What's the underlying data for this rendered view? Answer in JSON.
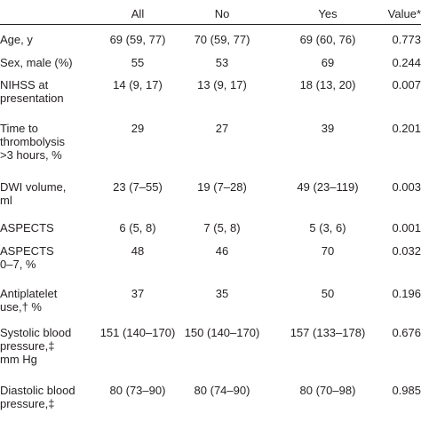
{
  "header": {
    "all": "All",
    "no": "No",
    "yes": "Yes",
    "value": "Value*"
  },
  "rows": [
    {
      "label": [
        "Age, y"
      ],
      "all": "69 (59, 77)",
      "no": "70 (59, 77)",
      "yes": "69 (60, 76)",
      "value": "0.773"
    },
    {
      "label": [
        "Sex, male (%)"
      ],
      "all": "55",
      "no": "53",
      "yes": "69",
      "value": "0.244"
    },
    {
      "label": [
        "NIHSS at",
        "presentation"
      ],
      "all": "14 (9, 17)",
      "no": "13 (9, 17)",
      "yes": "18 (13, 20)",
      "value": "0.007"
    },
    {
      "label": [
        "Time to",
        "thrombolysis",
        ">3 hours, %"
      ],
      "all": "29",
      "no": "27",
      "yes": "39",
      "value": "0.201"
    },
    {
      "label": [
        "DWI volume,",
        "ml"
      ],
      "all": "23 (7–55)",
      "no": "19 (7–28)",
      "yes": "49 (23–119)",
      "value": "0.003"
    },
    {
      "label": [
        "ASPECTS"
      ],
      "all": "6 (5, 8)",
      "no": "7 (5, 8)",
      "yes": "5 (3, 6)",
      "value": "0.001"
    },
    {
      "label": [
        "ASPECTS",
        "0–7, %"
      ],
      "all": "48",
      "no": "46",
      "yes": "70",
      "value": "0.032"
    },
    {
      "label": [
        "Antiplatelet",
        "use,† %"
      ],
      "all": "37",
      "no": "35",
      "yes": "50",
      "value": "0.196"
    },
    {
      "label": [
        "Systolic blood",
        "pressure,‡",
        "mm Hg"
      ],
      "all": "151 (140–170)",
      "no": "150 (140–170)",
      "yes": "157 (133–178)",
      "value": "0.676"
    },
    {
      "label": [
        "Diastolic blood",
        "pressure,‡"
      ],
      "all": "80 (73–90)",
      "no": "80 (74–90)",
      "yes": "80 (70–98)",
      "value": "0.985"
    }
  ]
}
